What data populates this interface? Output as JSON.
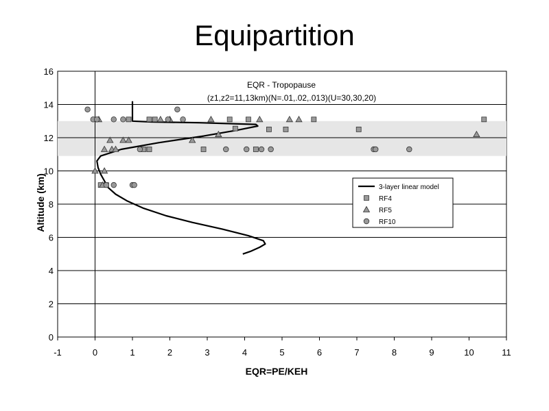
{
  "slide_title": "Equipartition",
  "chart_data": {
    "type": "scatter",
    "title": "EQR - Tropopause",
    "subtitle": "(z1,z2=11,13km)(N=.01,.02,.013)(U=30,30,20)",
    "xlabel": "EQR=PE/KEH",
    "ylabel": "Altitude (km)",
    "xlim": [
      -1,
      11
    ],
    "ylim": [
      0,
      16
    ],
    "x_ticks": [
      "-1",
      "0",
      "1",
      "2",
      "3",
      "4",
      "5",
      "6",
      "7",
      "8",
      "9",
      "10",
      "11"
    ],
    "y_ticks": [
      "0",
      "2",
      "4",
      "6",
      "8",
      "10",
      "12",
      "14",
      "16"
    ],
    "x_tick_values": [
      -1,
      0,
      1,
      2,
      3,
      4,
      5,
      6,
      7,
      8,
      9,
      10,
      11
    ],
    "y_tick_values": [
      0,
      2,
      4,
      6,
      8,
      10,
      12,
      14,
      16
    ],
    "grid": "horizontal",
    "tropopause_band": [
      10.9,
      13.0
    ],
    "legend_position": "right-middle",
    "legend": [
      "3-layer linear model",
      "RF4",
      "RF5",
      "RF10"
    ],
    "series": [
      {
        "name": "3-layer linear model",
        "marker": "line",
        "color": "#000000",
        "points": [
          [
            3.95,
            5.0
          ],
          [
            4.15,
            5.15
          ],
          [
            4.4,
            5.4
          ],
          [
            4.55,
            5.6
          ],
          [
            4.5,
            5.8
          ],
          [
            4.1,
            6.1
          ],
          [
            3.4,
            6.5
          ],
          [
            2.6,
            6.9
          ],
          [
            1.9,
            7.3
          ],
          [
            1.3,
            7.75
          ],
          [
            0.85,
            8.2
          ],
          [
            0.55,
            8.6
          ],
          [
            0.35,
            9.0
          ],
          [
            0.25,
            9.4
          ],
          [
            0.15,
            9.8
          ],
          [
            0.08,
            10.2
          ],
          [
            0.05,
            10.6
          ],
          [
            0.15,
            10.9
          ],
          [
            0.7,
            11.3
          ],
          [
            1.7,
            11.7
          ],
          [
            2.9,
            12.1
          ],
          [
            3.8,
            12.45
          ],
          [
            4.35,
            12.7
          ],
          [
            4.3,
            12.8
          ],
          [
            2.8,
            12.9
          ],
          [
            1.5,
            12.95
          ],
          [
            1.0,
            13.0
          ],
          [
            1.0,
            13.5
          ],
          [
            1.0,
            14.2
          ]
        ]
      },
      {
        "name": "RF4",
        "marker": "square",
        "color": "#999999",
        "points": [
          [
            0.9,
            13.1
          ],
          [
            1.45,
            13.1
          ],
          [
            1.6,
            13.1
          ],
          [
            3.6,
            13.1
          ],
          [
            4.1,
            13.1
          ],
          [
            5.85,
            13.1
          ],
          [
            10.4,
            13.1
          ],
          [
            3.75,
            12.55
          ],
          [
            4.65,
            12.5
          ],
          [
            5.1,
            12.5
          ],
          [
            7.05,
            12.5
          ],
          [
            1.3,
            11.3
          ],
          [
            1.45,
            11.3
          ],
          [
            2.9,
            11.3
          ],
          [
            4.3,
            11.3
          ],
          [
            0.15,
            9.15
          ],
          [
            0.3,
            9.15
          ]
        ]
      },
      {
        "name": "RF5",
        "marker": "triangle",
        "color": "#999999",
        "points": [
          [
            0.1,
            13.1
          ],
          [
            1.75,
            13.1
          ],
          [
            2.0,
            13.1
          ],
          [
            3.1,
            13.1
          ],
          [
            4.4,
            13.1
          ],
          [
            5.2,
            13.1
          ],
          [
            5.45,
            13.1
          ],
          [
            3.3,
            12.2
          ],
          [
            10.2,
            12.2
          ],
          [
            0.4,
            11.85
          ],
          [
            0.75,
            11.85
          ],
          [
            0.9,
            11.85
          ],
          [
            2.6,
            11.85
          ],
          [
            0.25,
            11.3
          ],
          [
            0.45,
            11.3
          ],
          [
            0.55,
            11.3
          ],
          [
            0.0,
            10.0
          ],
          [
            0.25,
            10.0
          ],
          [
            0.2,
            9.15
          ]
        ]
      },
      {
        "name": "RF10",
        "marker": "circle",
        "color": "#999999",
        "points": [
          [
            -0.2,
            13.7
          ],
          [
            2.2,
            13.7
          ],
          [
            -0.05,
            13.1
          ],
          [
            0.05,
            13.1
          ],
          [
            0.5,
            13.1
          ],
          [
            0.75,
            13.1
          ],
          [
            1.95,
            13.1
          ],
          [
            2.35,
            13.1
          ],
          [
            1.2,
            11.3
          ],
          [
            3.5,
            11.3
          ],
          [
            4.05,
            11.3
          ],
          [
            4.45,
            11.3
          ],
          [
            4.7,
            11.3
          ],
          [
            7.45,
            11.3
          ],
          [
            7.5,
            11.3
          ],
          [
            8.4,
            11.3
          ],
          [
            0.3,
            9.15
          ],
          [
            0.5,
            9.15
          ],
          [
            1.0,
            9.15
          ],
          [
            1.05,
            9.15
          ]
        ]
      }
    ]
  }
}
